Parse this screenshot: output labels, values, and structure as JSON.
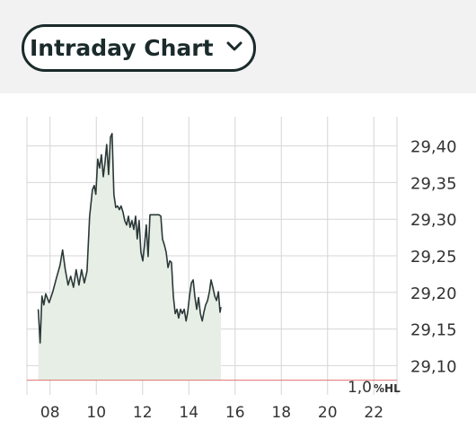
{
  "header": {
    "dropdown": "Intraday Chart"
  },
  "chart_data": {
    "type": "area",
    "x": [
      7.49,
      7.57,
      7.65,
      7.73,
      7.81,
      7.96,
      8.12,
      8.27,
      8.43,
      8.54,
      8.66,
      8.78,
      8.89,
      9.01,
      9.13,
      9.25,
      9.36,
      9.48,
      9.6,
      9.71,
      9.83,
      9.91,
      9.98,
      10.06,
      10.14,
      10.22,
      10.3,
      10.37,
      10.45,
      10.53,
      10.61,
      10.68,
      10.76,
      10.84,
      10.92,
      11.0,
      11.07,
      11.15,
      11.23,
      11.31,
      11.39,
      11.46,
      11.54,
      11.62,
      11.7,
      11.77,
      11.85,
      11.93,
      12.01,
      12.09,
      12.16,
      12.24,
      12.32,
      12.4,
      12.55,
      12.71,
      12.79,
      12.86,
      12.94,
      13.02,
      13.1,
      13.18,
      13.25,
      13.33,
      13.41,
      13.49,
      13.56,
      13.64,
      13.72,
      13.8,
      13.88,
      13.95,
      14.03,
      14.11,
      14.19,
      14.26,
      14.34,
      14.42,
      14.5,
      14.58,
      14.65,
      14.73,
      14.81,
      14.89,
      14.96,
      15.04,
      15.12,
      15.2,
      15.28,
      15.35,
      15.39
    ],
    "values": [
      29.177,
      29.131,
      29.195,
      29.183,
      29.198,
      29.186,
      29.201,
      29.219,
      29.237,
      29.258,
      29.231,
      29.21,
      29.222,
      29.207,
      29.231,
      29.21,
      29.231,
      29.213,
      29.229,
      29.304,
      29.34,
      29.346,
      29.334,
      29.382,
      29.37,
      29.388,
      29.358,
      29.376,
      29.402,
      29.361,
      29.412,
      29.417,
      29.334,
      29.316,
      29.318,
      29.313,
      29.318,
      29.31,
      29.298,
      29.292,
      29.304,
      29.289,
      29.298,
      29.286,
      29.304,
      29.273,
      29.298,
      29.255,
      29.243,
      29.267,
      29.292,
      29.249,
      29.306,
      29.306,
      29.306,
      29.306,
      29.304,
      29.273,
      29.265,
      29.255,
      29.234,
      29.243,
      29.241,
      29.195,
      29.171,
      29.177,
      29.165,
      29.177,
      29.171,
      29.177,
      29.161,
      29.173,
      29.195,
      29.213,
      29.217,
      29.195,
      29.177,
      29.193,
      29.171,
      29.161,
      29.173,
      29.183,
      29.189,
      29.201,
      29.217,
      29.207,
      29.195,
      29.189,
      29.201,
      29.173,
      29.18
    ],
    "color": "#2b3838",
    "fill": "#e6eee5",
    "xlim": [
      7,
      23
    ],
    "xticks": [
      {
        "value": 8,
        "label": "08"
      },
      {
        "value": 10,
        "label": "10"
      },
      {
        "value": 12,
        "label": "12"
      },
      {
        "value": 14,
        "label": "14"
      },
      {
        "value": 16,
        "label": "16"
      },
      {
        "value": 18,
        "label": "18"
      },
      {
        "value": 20,
        "label": "20"
      },
      {
        "value": 22,
        "label": "22"
      }
    ],
    "ylim": [
      29.06,
      29.44
    ],
    "yticks": [
      {
        "value": 29.1,
        "label": "29,10"
      },
      {
        "value": 29.15,
        "label": "29,15"
      },
      {
        "value": 29.2,
        "label": "29,20"
      },
      {
        "value": 29.25,
        "label": "29,25"
      },
      {
        "value": 29.3,
        "label": "29,30"
      },
      {
        "value": 29.35,
        "label": "29,35"
      },
      {
        "value": 29.4,
        "label": "29,40"
      }
    ],
    "grid": true,
    "reference_line": {
      "value": 29.08,
      "color": "#e07070"
    },
    "annotation": {
      "text": "1,0",
      "suffix": "%HL"
    }
  }
}
